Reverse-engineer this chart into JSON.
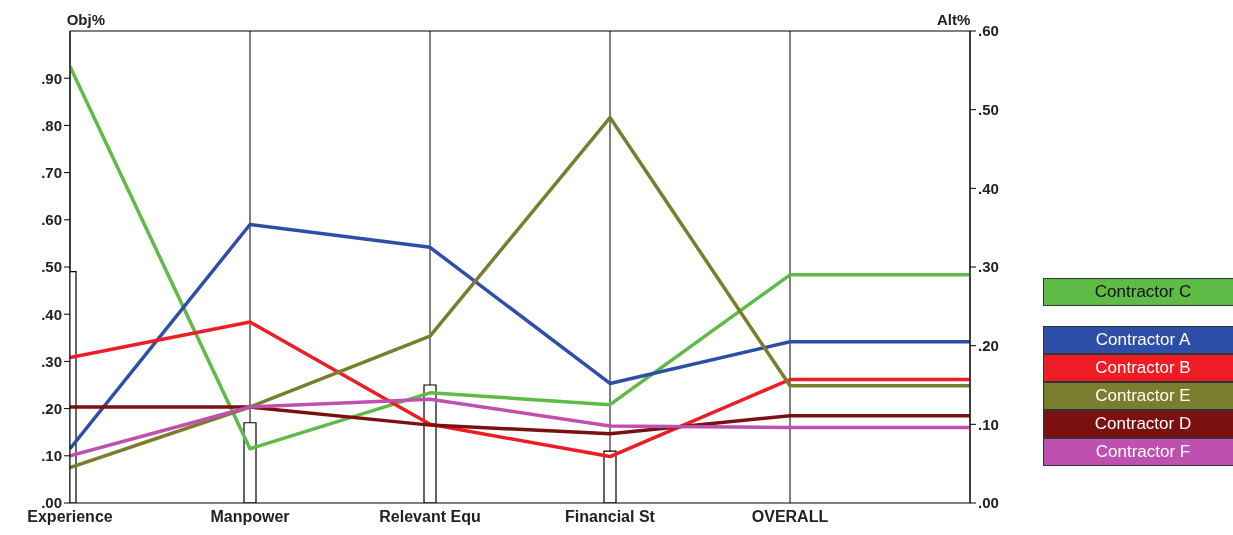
{
  "chart_data": {
    "type": "line",
    "ylabel": "Obj%",
    "y2label": "Alt%",
    "categories": [
      "Experience",
      "Manpower",
      "Relevant Equ",
      "Financial St",
      "OVERALL",
      null
    ],
    "series": [
      {
        "type": "bar",
        "axis": "y",
        "color": "#ffffff",
        "values": [
          0.49,
          0.17,
          0.25,
          0.11,
          null,
          null
        ]
      },
      {
        "name": "Contractor C",
        "color": "#5dbb46",
        "axis": "y2",
        "values": [
          0.555,
          0.069,
          0.14,
          0.125,
          0.29,
          0.29
        ]
      },
      {
        "name": "Contractor A",
        "color": "#2e4fa8",
        "axis": "y2",
        "values": [
          0.069,
          0.354,
          0.325,
          0.152,
          0.205,
          0.205
        ]
      },
      {
        "name": "Contractor B",
        "color": "#ee1c24",
        "axis": "y2",
        "values": [
          0.185,
          0.23,
          0.1,
          0.059,
          0.157,
          0.157
        ]
      },
      {
        "name": "Contractor E",
        "color": "#7b7d2e",
        "axis": "y2",
        "values": [
          0.045,
          0.122,
          0.212,
          0.49,
          0.149,
          0.149
        ]
      },
      {
        "name": "Contractor D",
        "color": "#7a1010",
        "axis": "y2",
        "values": [
          0.122,
          0.122,
          0.099,
          0.088,
          0.111,
          0.111
        ]
      },
      {
        "name": "Contractor F",
        "color": "#c050b0",
        "axis": "y2",
        "values": [
          0.06,
          0.122,
          0.132,
          0.098,
          0.096,
          0.096
        ]
      }
    ],
    "ylim": [
      0,
      1
    ],
    "yticks": [
      {
        "value": 0,
        "label": ".00"
      },
      {
        "value": 0.1,
        "label": ".10"
      },
      {
        "value": 0.2,
        "label": ".20"
      },
      {
        "value": 0.3,
        "label": ".30"
      },
      {
        "value": 0.4,
        "label": ".40"
      },
      {
        "value": 0.5,
        "label": ".50"
      },
      {
        "value": 0.6,
        "label": ".60"
      },
      {
        "value": 0.7,
        "label": ".70"
      },
      {
        "value": 0.8,
        "label": ".80"
      },
      {
        "value": 0.9,
        "label": ".90"
      }
    ],
    "y2lim": [
      0,
      0.6
    ],
    "y2ticks": [
      {
        "value": 0,
        "label": ".00"
      },
      {
        "value": 0.1,
        "label": ".10"
      },
      {
        "value": 0.2,
        "label": ".20"
      },
      {
        "value": 0.3,
        "label": ".30"
      },
      {
        "value": 0.4,
        "label": ".40"
      },
      {
        "value": 0.5,
        "label": ".50"
      },
      {
        "value": 0.6,
        "label": ".60"
      }
    ],
    "grid": "x",
    "legend": "right",
    "marker": "none",
    "line_style": "solid"
  }
}
